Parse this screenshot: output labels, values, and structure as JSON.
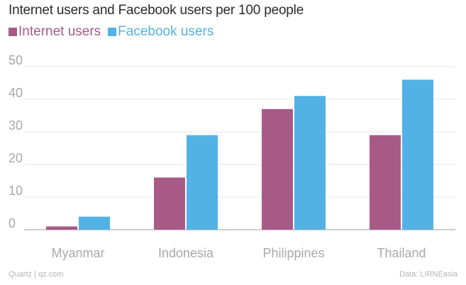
{
  "chart_data": {
    "type": "bar",
    "title": "Internet users and Facebook users per 100 people",
    "categories": [
      "Myanmar",
      "Indonesia",
      "Philippines",
      "Thailand"
    ],
    "series": [
      {
        "name": "Internet users",
        "color": "#a85a87",
        "values": [
          1,
          16,
          37,
          29
        ]
      },
      {
        "name": "Facebook users",
        "color": "#52b2e5",
        "values": [
          4,
          29,
          41,
          46
        ]
      }
    ],
    "ylim": [
      0,
      50
    ],
    "yticks": [
      "0",
      "10",
      "20",
      "30",
      "40",
      "50"
    ],
    "grid": true,
    "legend_position": "top-left"
  },
  "footer": {
    "source_left": "Quartz | qz.com",
    "source_right": "Data: LIRNEasia"
  },
  "colors": {
    "gridline": "#e6e6e6",
    "axis": "#bdbdbd",
    "tick_label": "#a9a9a9"
  }
}
